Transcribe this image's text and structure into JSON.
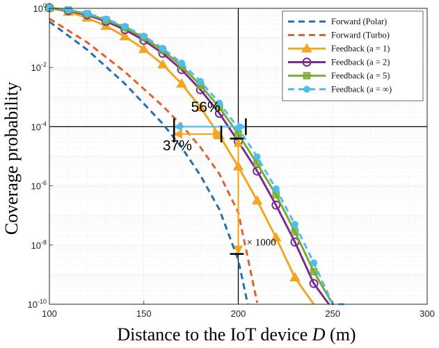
{
  "chart_data": {
    "type": "line",
    "title": "",
    "xlabel": "Distance to the IoT device",
    "xlabel_symbol": "D",
    "xlabel_unit": "(m)",
    "ylabel": "Coverage probability",
    "xlim": [
      100,
      300
    ],
    "ylim_log10": [
      -10,
      0
    ],
    "yscale": "log",
    "grid": true,
    "x_ticks": [
      "100",
      "150",
      "200",
      "250",
      "300"
    ],
    "y_ticks": [
      {
        "base": "10",
        "exp": "0"
      },
      {
        "base": "10",
        "exp": "-2"
      },
      {
        "base": "10",
        "exp": "-4"
      },
      {
        "base": "10",
        "exp": "-6"
      },
      {
        "base": "10",
        "exp": "-8"
      },
      {
        "base": "10",
        "exp": "-10"
      }
    ],
    "legend_position": "top-right",
    "series": [
      {
        "name": "Forward (Polar)",
        "color": "#1f6fb5",
        "dash": true,
        "marker": "none",
        "x": [
          100,
          120,
          140,
          160,
          170,
          180,
          190,
          200,
          205
        ],
        "y_log10": [
          -0.45,
          -1.4,
          -2.55,
          -3.9,
          -4.7,
          -5.65,
          -6.8,
          -8.5,
          -10
        ]
      },
      {
        "name": "Forward (Turbo)",
        "color": "#e0622a",
        "dash": true,
        "marker": "none",
        "x": [
          100,
          120,
          140,
          160,
          170,
          180,
          190,
          200,
          210
        ],
        "y_log10": [
          -0.35,
          -1.15,
          -2.15,
          -3.3,
          -3.95,
          -4.7,
          -5.6,
          -6.9,
          -9.95
        ]
      },
      {
        "name": "Feedback (a = 1)",
        "color": "#f2a623",
        "dash": false,
        "marker": "triangle",
        "x": [
          100,
          110,
          120,
          130,
          140,
          150,
          160,
          170,
          180,
          190,
          200,
          210,
          220,
          230,
          240
        ],
        "y_log10": [
          0.02,
          -0.12,
          -0.32,
          -0.6,
          -0.95,
          -1.38,
          -1.9,
          -2.55,
          -3.35,
          -4.3,
          -5.35,
          -6.5,
          -7.75,
          -9.1,
          -10
        ]
      },
      {
        "name": "Feedback (a = 2)",
        "color": "#7b2b8e",
        "dash": false,
        "marker": "circle",
        "x": [
          100,
          110,
          120,
          130,
          140,
          150,
          160,
          170,
          180,
          190,
          200,
          210,
          220,
          230,
          240,
          248
        ],
        "y_log10": [
          0.02,
          -0.08,
          -0.22,
          -0.44,
          -0.72,
          -1.08,
          -1.52,
          -2.07,
          -2.75,
          -3.55,
          -4.5,
          -5.5,
          -6.65,
          -7.9,
          -9.3,
          -10
        ]
      },
      {
        "name": "Feedback (a = 5)",
        "color": "#77ac30",
        "dash": false,
        "marker": "square",
        "x": [
          100,
          110,
          120,
          130,
          140,
          150,
          160,
          170,
          180,
          190,
          200,
          210,
          220,
          230,
          240,
          250
        ],
        "y_log10": [
          0.02,
          -0.06,
          -0.19,
          -0.39,
          -0.65,
          -0.99,
          -1.42,
          -1.95,
          -2.6,
          -3.35,
          -4.25,
          -5.25,
          -6.3,
          -7.55,
          -8.9,
          -10
        ]
      },
      {
        "name": "Feedback (a = ∞)",
        "color": "#4dbeee",
        "dash": true,
        "marker": "dot",
        "x": [
          100,
          110,
          120,
          130,
          140,
          150,
          160,
          170,
          180,
          190,
          200,
          210,
          220,
          230,
          240,
          250,
          258
        ],
        "y_log10": [
          0.02,
          -0.05,
          -0.17,
          -0.36,
          -0.61,
          -0.94,
          -1.35,
          -1.85,
          -2.47,
          -3.2,
          -4.05,
          -5.02,
          -6.1,
          -7.3,
          -8.6,
          -10,
          -10
        ]
      }
    ],
    "reference_lines": {
      "x": 200,
      "y_log10": -4
    },
    "annotations": [
      {
        "text": "56%",
        "color": "#4dbeee",
        "from": [
          166,
          -4
        ],
        "to": [
          204,
          -4
        ],
        "label_at": [
          175,
          -3.5
        ]
      },
      {
        "text": "37%",
        "color": "#f2a623",
        "from": [
          166,
          -4.25
        ],
        "to": [
          191,
          -4.25
        ],
        "label_at": [
          160,
          -4.8
        ]
      },
      {
        "text": "× 1000",
        "color": "#f2a623",
        "from": [
          200,
          -4.4
        ],
        "to": [
          200,
          -8.3
        ]
      }
    ]
  }
}
